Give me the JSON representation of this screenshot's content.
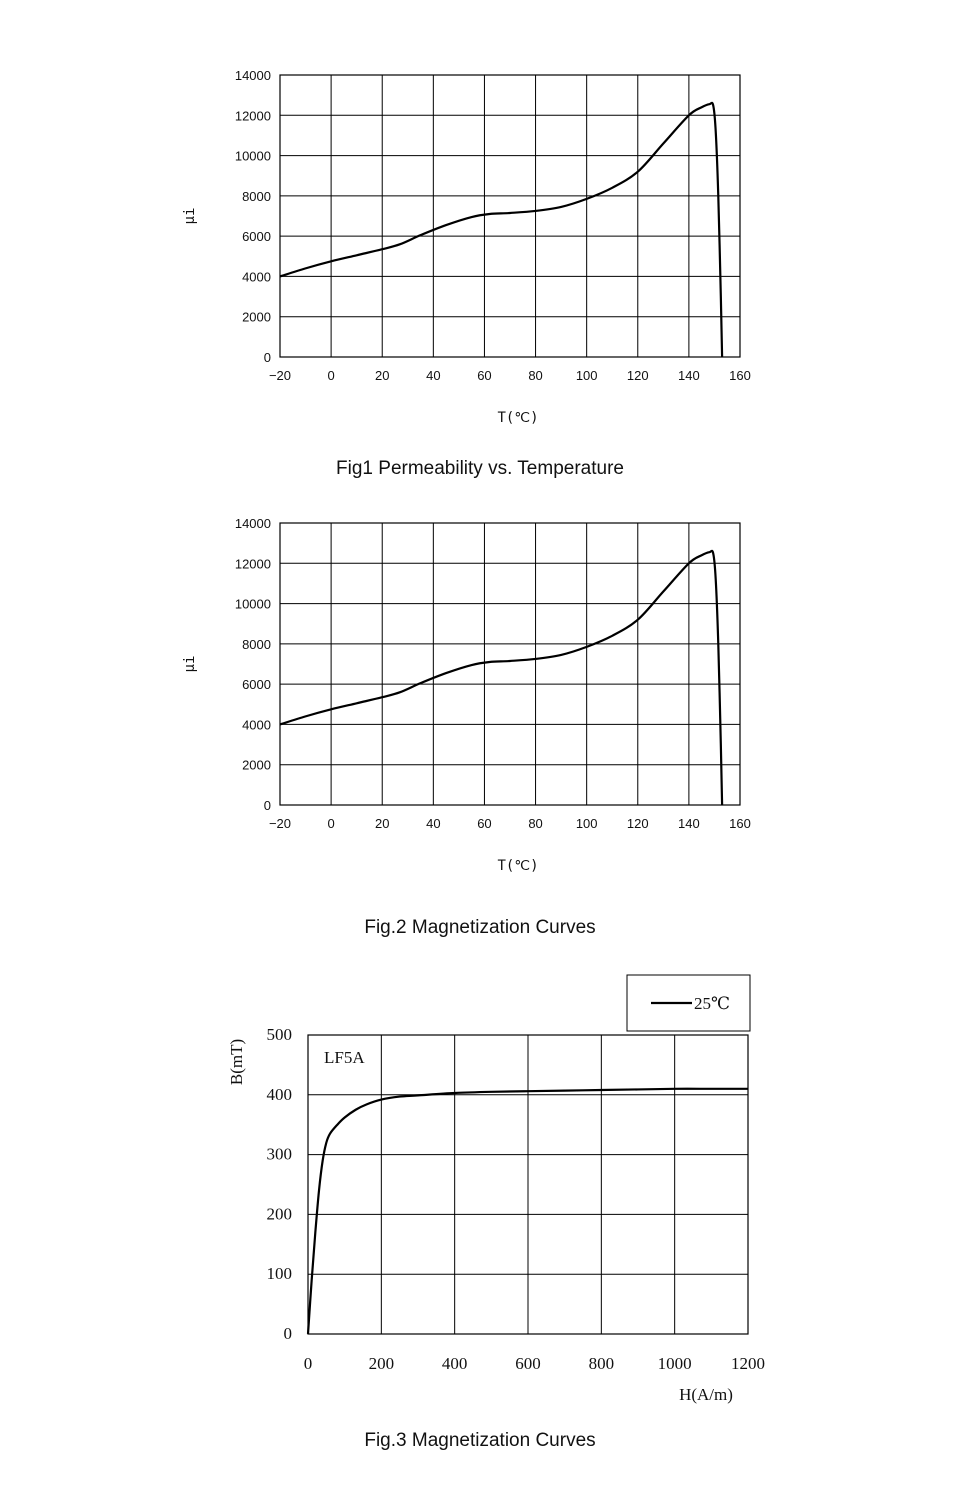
{
  "captions": {
    "fig1": "Fig1 Permeability vs. Temperature",
    "fig2": "Fig.2 Magnetization Curves",
    "fig3": "Fig.3 Magnetization Curves"
  },
  "chart_data": [
    {
      "type": "line",
      "title": "Fig1 Permeability vs. Temperature",
      "xlabel": "T(℃)",
      "ylabel": "μi",
      "xlim": [
        -20,
        160
      ],
      "ylim": [
        0,
        14000
      ],
      "xticks": [
        -20,
        0,
        20,
        40,
        60,
        80,
        100,
        120,
        140,
        160
      ],
      "yticks": [
        0,
        2000,
        4000,
        6000,
        8000,
        10000,
        12000,
        14000
      ],
      "grid": true,
      "series": [
        {
          "x": [
            -20,
            -10,
            0,
            10,
            20,
            27,
            35,
            45,
            55,
            62,
            70,
            80,
            90,
            100,
            110,
            120,
            130,
            140,
            145,
            148,
            149.5,
            150.5,
            151.5,
            152.5,
            153
          ],
          "y": [
            4000,
            4400,
            4750,
            5050,
            5350,
            5600,
            6050,
            6550,
            6950,
            7100,
            7150,
            7250,
            7450,
            7850,
            8400,
            9200,
            10600,
            12000,
            12400,
            12550,
            12500,
            11200,
            8000,
            3000,
            0
          ]
        }
      ]
    },
    {
      "type": "line",
      "title": "Fig.2 Magnetization Curves",
      "xlabel": "T(℃)",
      "ylabel": "μi",
      "xlim": [
        -20,
        160
      ],
      "ylim": [
        0,
        14000
      ],
      "xticks": [
        -20,
        0,
        20,
        40,
        60,
        80,
        100,
        120,
        140,
        160
      ],
      "yticks": [
        0,
        2000,
        4000,
        6000,
        8000,
        10000,
        12000,
        14000
      ],
      "grid": true,
      "series": [
        {
          "x": [
            -20,
            -10,
            0,
            10,
            20,
            27,
            35,
            45,
            55,
            62,
            70,
            80,
            90,
            100,
            110,
            120,
            130,
            140,
            145,
            148,
            149.5,
            150.5,
            151.5,
            152.5,
            153
          ],
          "y": [
            4000,
            4400,
            4750,
            5050,
            5350,
            5600,
            6050,
            6550,
            6950,
            7100,
            7150,
            7250,
            7450,
            7850,
            8400,
            9200,
            10600,
            12000,
            12400,
            12550,
            12500,
            11200,
            8000,
            3000,
            0
          ]
        }
      ]
    },
    {
      "type": "line",
      "title": "Fig.3 Magnetization Curves",
      "xlabel": "H(A/m)",
      "ylabel": "B(mT)",
      "annotation": "LF5A",
      "xlim": [
        0,
        1200
      ],
      "ylim": [
        0,
        500
      ],
      "xticks": [
        0,
        200,
        400,
        600,
        800,
        1000,
        1200
      ],
      "yticks": [
        0,
        100,
        200,
        300,
        400,
        500
      ],
      "grid": true,
      "legend_position": "top-right",
      "series": [
        {
          "name": "25℃",
          "x": [
            0,
            10,
            20,
            30,
            40,
            50,
            60,
            80,
            100,
            130,
            160,
            200,
            250,
            300,
            400,
            500,
            600,
            700,
            800,
            900,
            1000,
            1100,
            1200
          ],
          "y": [
            0,
            90,
            170,
            240,
            290,
            320,
            335,
            350,
            362,
            375,
            384,
            392,
            397,
            399,
            403,
            405,
            406,
            407,
            408,
            409,
            410,
            410,
            410
          ]
        }
      ]
    }
  ]
}
